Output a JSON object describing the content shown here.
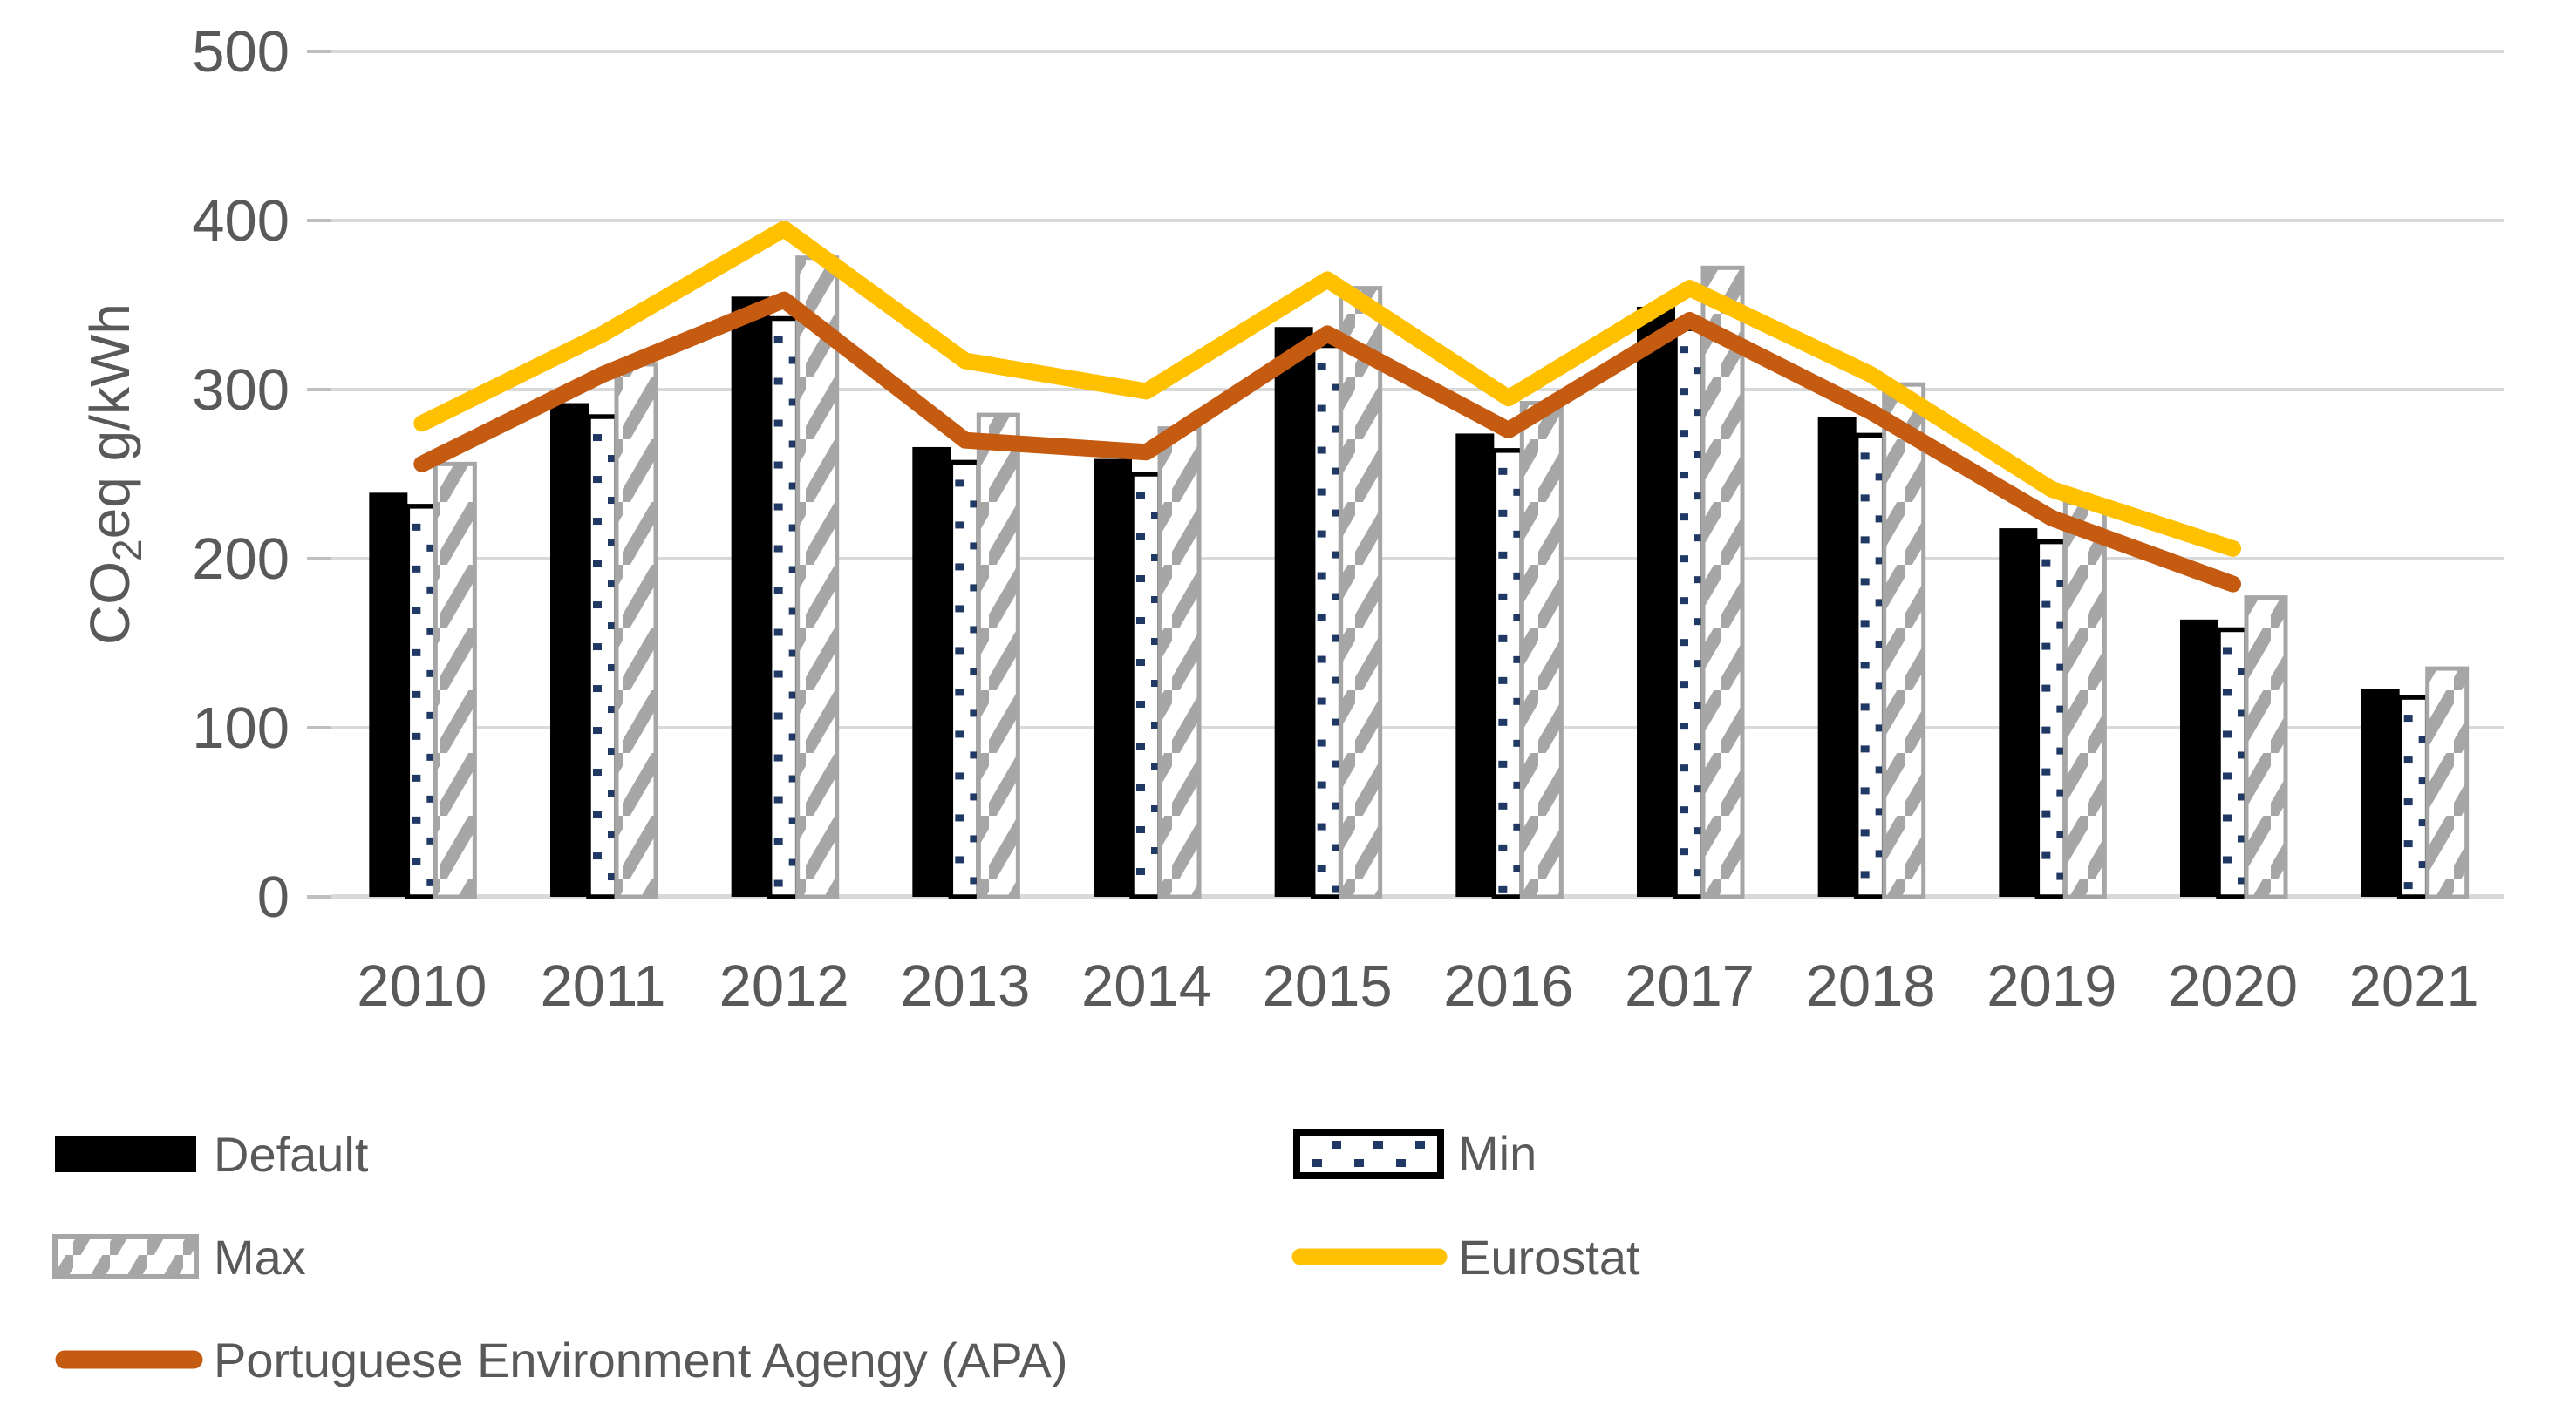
{
  "chart_data": {
    "type": "bar+line combo",
    "title": "",
    "ylabel": "CO2eq g/kWh",
    "ylabel_parts": [
      "CO",
      "2",
      "eq g/kWh"
    ],
    "xlabel": "",
    "categories": [
      "2010",
      "2011",
      "2012",
      "2013",
      "2014",
      "2015",
      "2016",
      "2017",
      "2018",
      "2019",
      "2020",
      "2021"
    ],
    "yticks": [
      0,
      100,
      200,
      300,
      400,
      500
    ],
    "ylim": [
      0,
      500
    ],
    "grid": true,
    "legend_position": "bottom-two-columns",
    "series": [
      {
        "name": "Default",
        "type": "bar",
        "style": "solid",
        "color": "#000000",
        "values": [
          239,
          292,
          355,
          266,
          259,
          337,
          274,
          349,
          284,
          218,
          164,
          123
        ]
      },
      {
        "name": "Min",
        "type": "bar",
        "style": "dotted-white",
        "color": "#1F3864",
        "values": [
          231,
          284,
          342,
          257,
          250,
          326,
          264,
          336,
          273,
          210,
          158,
          118
        ]
      },
      {
        "name": "Max",
        "type": "bar",
        "style": "hatched-white",
        "color": "#A6A6A6",
        "values": [
          256,
          315,
          378,
          285,
          277,
          360,
          292,
          372,
          303,
          233,
          177,
          135
        ]
      },
      {
        "name": "Eurostat",
        "type": "line",
        "color": "#FFC000",
        "values": [
          280,
          333,
          395,
          317,
          299,
          365,
          295,
          360,
          309,
          241,
          206,
          null
        ]
      },
      {
        "name": "Portuguese Environment Agengy (APA)",
        "type": "line",
        "color": "#C55A11",
        "values": [
          256,
          309,
          353,
          270,
          263,
          333,
          276,
          341,
          287,
          224,
          185,
          null
        ]
      }
    ],
    "legend": {
      "left_column": [
        "Default",
        "Max",
        "Portuguese Environment Agengy (APA)"
      ],
      "right_column": [
        "Min",
        "Eurostat"
      ]
    },
    "colors": {
      "grid": "#D9D9D9",
      "tick": "#BFBFBF",
      "axis_text": "#595959",
      "bar_default": "#000000",
      "min_dot": "#1F3864",
      "max_hatch": "#A6A6A6",
      "eurostat": "#FFC000",
      "apa": "#C55A11",
      "background": "#FFFFFF"
    }
  }
}
